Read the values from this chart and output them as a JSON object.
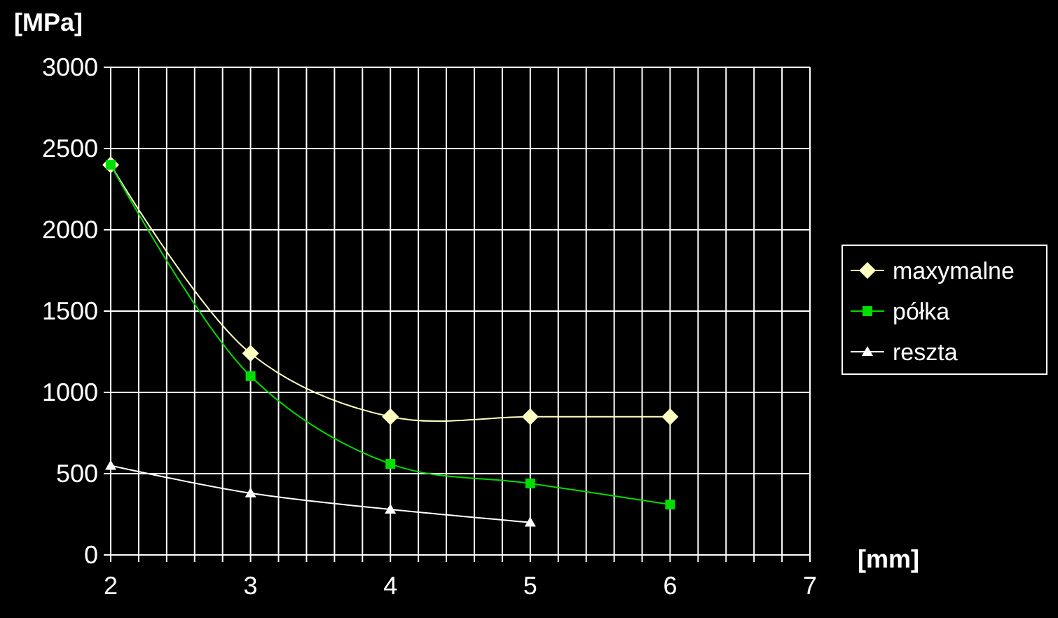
{
  "chart_data": {
    "type": "line",
    "xlabel": "[mm]",
    "ylabel": "[MPa]",
    "xlim": [
      2,
      7
    ],
    "ylim": [
      0,
      3000
    ],
    "xticks": [
      2,
      {
        "value": 2.2,
        "label": null
      },
      {
        "value": 2.4,
        "label": null
      },
      {
        "value": 2.6,
        "label": null
      },
      {
        "value": 2.8,
        "label": null
      },
      3,
      {
        "value": 3.2,
        "label": null
      },
      {
        "value": 3.4,
        "label": null
      },
      {
        "value": 3.6,
        "label": null
      },
      {
        "value": 3.8,
        "label": null
      },
      4,
      {
        "value": 4.2,
        "label": null
      },
      {
        "value": 4.4,
        "label": null
      },
      {
        "value": 4.6,
        "label": null
      },
      {
        "value": 4.8,
        "label": null
      },
      5,
      {
        "value": 5.2,
        "label": null
      },
      {
        "value": 5.4,
        "label": null
      },
      {
        "value": 5.6,
        "label": null
      },
      {
        "value": 5.8,
        "label": null
      },
      6,
      {
        "value": 6.2,
        "label": null
      },
      {
        "value": 6.4,
        "label": null
      },
      {
        "value": 6.6,
        "label": null
      },
      {
        "value": 6.8,
        "label": null
      },
      7
    ],
    "yticks": [
      0,
      500,
      1000,
      1500,
      2000,
      2500,
      3000
    ],
    "grid": true,
    "legend": "right",
    "series": [
      {
        "name": "maxymalne",
        "color": "#ffffc0",
        "marker": "diamond",
        "x": [
          2,
          3,
          4,
          5,
          6
        ],
        "values": [
          2400,
          1240,
          850,
          850,
          850
        ]
      },
      {
        "name": "półka",
        "color": "#00dd00",
        "marker": "square",
        "x": [
          2,
          3,
          4,
          5,
          6
        ],
        "values": [
          2400,
          1100,
          560,
          440,
          310
        ]
      },
      {
        "name": "reszta",
        "color": "#ffffff",
        "marker": "triangle",
        "x": [
          2,
          3,
          4,
          5
        ],
        "values": [
          550,
          380,
          280,
          200
        ]
      }
    ]
  }
}
